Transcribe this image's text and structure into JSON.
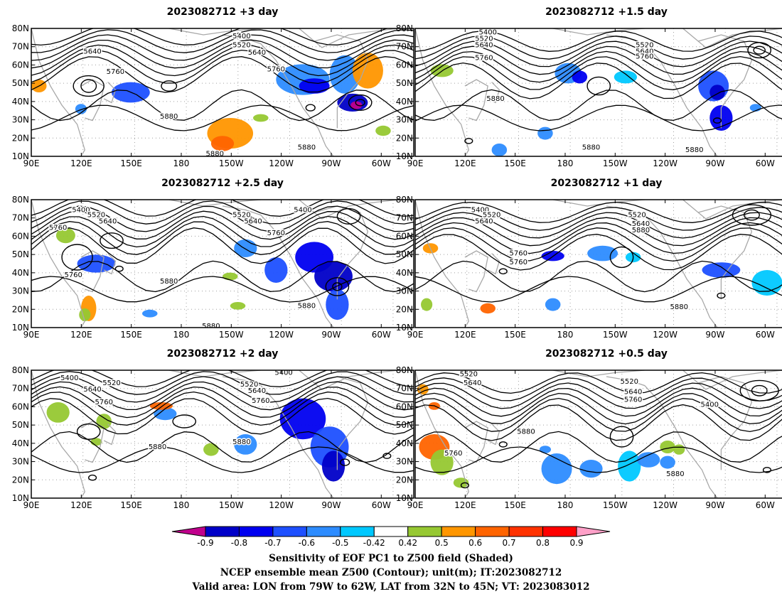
{
  "panels": [
    {
      "title": "2023082712  +3 day",
      "contour_labels": [
        "5400",
        "5520",
        "5640",
        "5640",
        "5760",
        "5760",
        "5880",
        "5880",
        "5880"
      ]
    },
    {
      "title": "2023082712  +1.5 day",
      "contour_labels": [
        "5400",
        "5520",
        "5640",
        "5520",
        "5640",
        "5760",
        "5760",
        "5880",
        "5880",
        "5880"
      ]
    },
    {
      "title": "2023082712  +2.5 day",
      "contour_labels": [
        "5400",
        "5520",
        "5640",
        "5520",
        "5640",
        "5400",
        "5760",
        "5760",
        "5760",
        "5880",
        "5880",
        "5880"
      ]
    },
    {
      "title": "2023082712  +1 day",
      "contour_labels": [
        "5400",
        "5520",
        "5640",
        "5520",
        "5640",
        "5760",
        "5760",
        "5880",
        "5880"
      ]
    },
    {
      "title": "2023082712  +2 day",
      "contour_labels": [
        "5400",
        "5520",
        "5640",
        "5760",
        "5520",
        "5640",
        "5760",
        "5400",
        "5880",
        "5880"
      ]
    },
    {
      "title": "2023082712  +0.5 day",
      "contour_labels": [
        "5520",
        "5640",
        "5520",
        "5640",
        "5760",
        "5400",
        "5880",
        "5760",
        "5880"
      ]
    }
  ],
  "axes": {
    "x_ticks": [
      "90E",
      "120E",
      "150E",
      "180",
      "150W",
      "120W",
      "90W",
      "60W"
    ],
    "y_ticks": [
      "80N",
      "70N",
      "60N",
      "50N",
      "40N",
      "30N",
      "20N",
      "10N"
    ]
  },
  "colorbar": {
    "labels": [
      "-0.9",
      "-0.8",
      "-0.7",
      "-0.6",
      "-0.5",
      "-0.42",
      "0.42",
      "0.5",
      "0.6",
      "0.7",
      "0.8",
      "0.9"
    ],
    "colors": [
      "#c0008c",
      "#0000c8",
      "#0000f0",
      "#1e50ff",
      "#2d8cff",
      "#00c8ff",
      "#ffffff",
      "#96c832",
      "#ff9600",
      "#ff6400",
      "#ff3200",
      "#ff0000",
      "#ffa0c8"
    ]
  },
  "footer": {
    "line1": "Sensitivity of EOF PC1 to Z500 field (Shaded)",
    "line2": "NCEP ensemble mean Z500 (Contour); unit(m); IT:2023082712",
    "line3": "Valid area: LON from 79W to 62W, LAT from 32N to 45N; VT: 2023083012"
  },
  "style_colors": {
    "contour": "#000000",
    "land": "#a8a8a8",
    "grid": "#a0a0a0"
  }
}
